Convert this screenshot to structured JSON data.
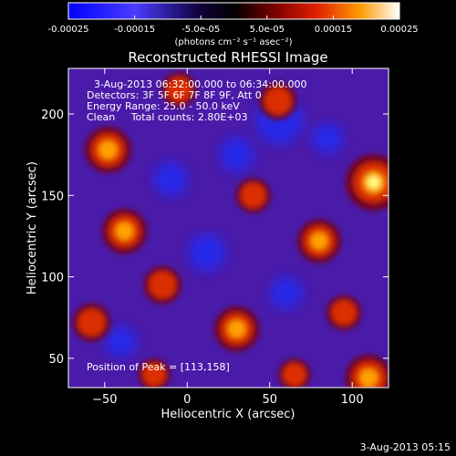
{
  "colorbar": {
    "tick_labels": [
      "-0.00025",
      "-0.00015",
      "-5.0e-05",
      "5.0e-05",
      "0.00015",
      "0.00025"
    ],
    "tick_values": [
      -0.00025,
      -0.00015,
      -5e-05,
      5e-05,
      0.00015,
      0.00025
    ],
    "range": [
      -0.00025,
      0.00025
    ],
    "unit_label": "(photons cm⁻² s⁻¹ asec⁻²)"
  },
  "title": "Reconstructed RHESSI Image",
  "info": {
    "time_range": "3-Aug-2013 06:32:00.000 to 06:34:00.000",
    "detectors": "Detectors: 3F 5F 6F 7F 8F 9F, Att 0",
    "energy": "Energy Range: 25.0 - 50.0 keV",
    "clean": "Clean     Total counts: 2.80E+03",
    "peak": "Position of Peak = [113,158]"
  },
  "footer_timestamp": "3-Aug-2013 05:15",
  "colors": {
    "low": "#0000ff",
    "mid": "#000000",
    "high": "#ffffff",
    "background": "#4a1aa8"
  },
  "chart_data": {
    "type": "heatmap",
    "title": "Reconstructed RHESSI Image",
    "xlabel": "Heliocentric X (arcsec)",
    "ylabel": "Heliocentric Y (arcsec)",
    "xlim": [
      -72,
      122
    ],
    "ylim": [
      32,
      228
    ],
    "x_ticks": [
      -50,
      0,
      50,
      100
    ],
    "y_ticks": [
      50,
      100,
      150,
      200
    ],
    "x_tick_labels": [
      "−50",
      "0",
      "50",
      "100"
    ],
    "y_tick_labels": [
      "50",
      "100",
      "150",
      "200"
    ],
    "peak": [
      113,
      158
    ],
    "hotspots": [
      {
        "x": 113,
        "y": 158,
        "value": 0.00025
      },
      {
        "x": -48,
        "y": 178,
        "value": 0.00018
      },
      {
        "x": -38,
        "y": 128,
        "value": 0.00017
      },
      {
        "x": 30,
        "y": 68,
        "value": 0.00017
      },
      {
        "x": 80,
        "y": 122,
        "value": 0.00016
      },
      {
        "x": 110,
        "y": 38,
        "value": 0.00018
      },
      {
        "x": -15,
        "y": 95,
        "value": 0.00012
      },
      {
        "x": 55,
        "y": 208,
        "value": 0.00012
      },
      {
        "x": -58,
        "y": 72,
        "value": 0.00012
      },
      {
        "x": -5,
        "y": 215,
        "value": 0.0001
      },
      {
        "x": 40,
        "y": 150,
        "value": 0.0001
      },
      {
        "x": 95,
        "y": 78,
        "value": 0.0001
      },
      {
        "x": -20,
        "y": 40,
        "value": 8e-05
      },
      {
        "x": 65,
        "y": 40,
        "value": 8e-05
      }
    ],
    "coldspots": [
      {
        "x": 56,
        "y": 196,
        "value": -0.00018
      },
      {
        "x": 12,
        "y": 115,
        "value": -0.00012
      },
      {
        "x": 30,
        "y": 175,
        "value": -0.0001
      },
      {
        "x": -10,
        "y": 160,
        "value": -0.0001
      },
      {
        "x": 60,
        "y": 90,
        "value": -9e-05
      },
      {
        "x": -40,
        "y": 60,
        "value": -8e-05
      },
      {
        "x": 85,
        "y": 185,
        "value": -8e-05
      }
    ]
  }
}
